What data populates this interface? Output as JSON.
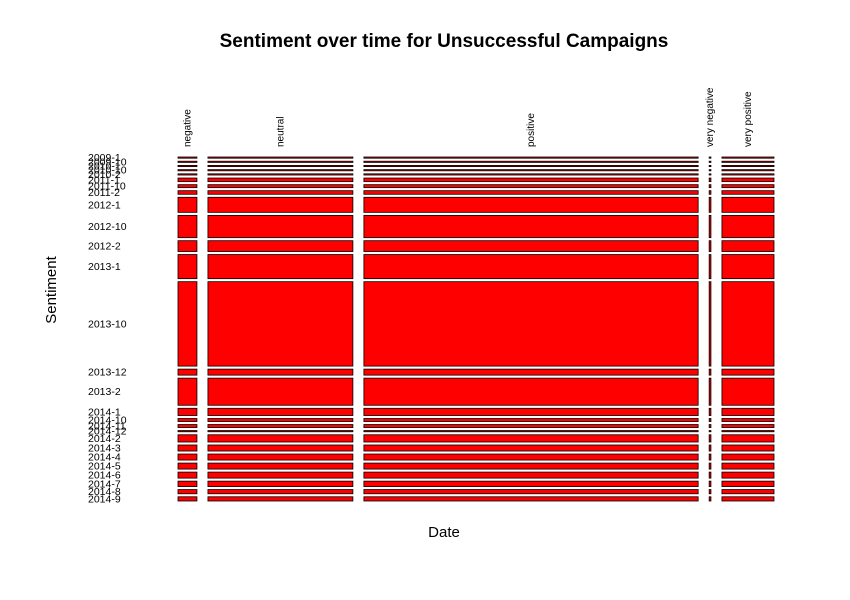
{
  "chart_data": {
    "type": "mosaic",
    "title": "Sentiment over time for Unsuccessful Campaigns",
    "xlabel": "Date",
    "ylabel": "Sentiment",
    "fill_color": "#ff0000",
    "columns": [
      {
        "label": "negative",
        "weight": 3.2
      },
      {
        "label": "neutral",
        "weight": 24.5
      },
      {
        "label": "positive",
        "weight": 56.5
      },
      {
        "label": "very negative",
        "weight": 0.3
      },
      {
        "label": "very positive",
        "weight": 8.8
      }
    ],
    "rows": [
      {
        "label": "2009-1",
        "weight": 0.2
      },
      {
        "label": "2009-10",
        "weight": 0.2
      },
      {
        "label": "2010-1",
        "weight": 0.2
      },
      {
        "label": "2010-10",
        "weight": 0.2
      },
      {
        "label": "2010-2",
        "weight": 0.2
      },
      {
        "label": "2011-1",
        "weight": 0.6
      },
      {
        "label": "2011-10",
        "weight": 0.5
      },
      {
        "label": "2011-2",
        "weight": 0.6
      },
      {
        "label": "2012-1",
        "weight": 2.5
      },
      {
        "label": "2012-10",
        "weight": 3.7
      },
      {
        "label": "2012-2",
        "weight": 1.8
      },
      {
        "label": "2013-1",
        "weight": 4.0
      },
      {
        "label": "2013-10",
        "weight": 14.0
      },
      {
        "label": "2013-12",
        "weight": 1.0
      },
      {
        "label": "2013-2",
        "weight": 4.5
      },
      {
        "label": "2014-1",
        "weight": 1.2
      },
      {
        "label": "2014-10",
        "weight": 0.5
      },
      {
        "label": "2014-11",
        "weight": 0.5
      },
      {
        "label": "2014-12",
        "weight": 0.2
      },
      {
        "label": "2014-2",
        "weight": 1.2
      },
      {
        "label": "2014-3",
        "weight": 1.0
      },
      {
        "label": "2014-4",
        "weight": 1.0
      },
      {
        "label": "2014-5",
        "weight": 1.0
      },
      {
        "label": "2014-6",
        "weight": 1.0
      },
      {
        "label": "2014-7",
        "weight": 0.9
      },
      {
        "label": "2014-8",
        "weight": 0.7
      },
      {
        "label": "2014-9",
        "weight": 0.7
      }
    ]
  }
}
